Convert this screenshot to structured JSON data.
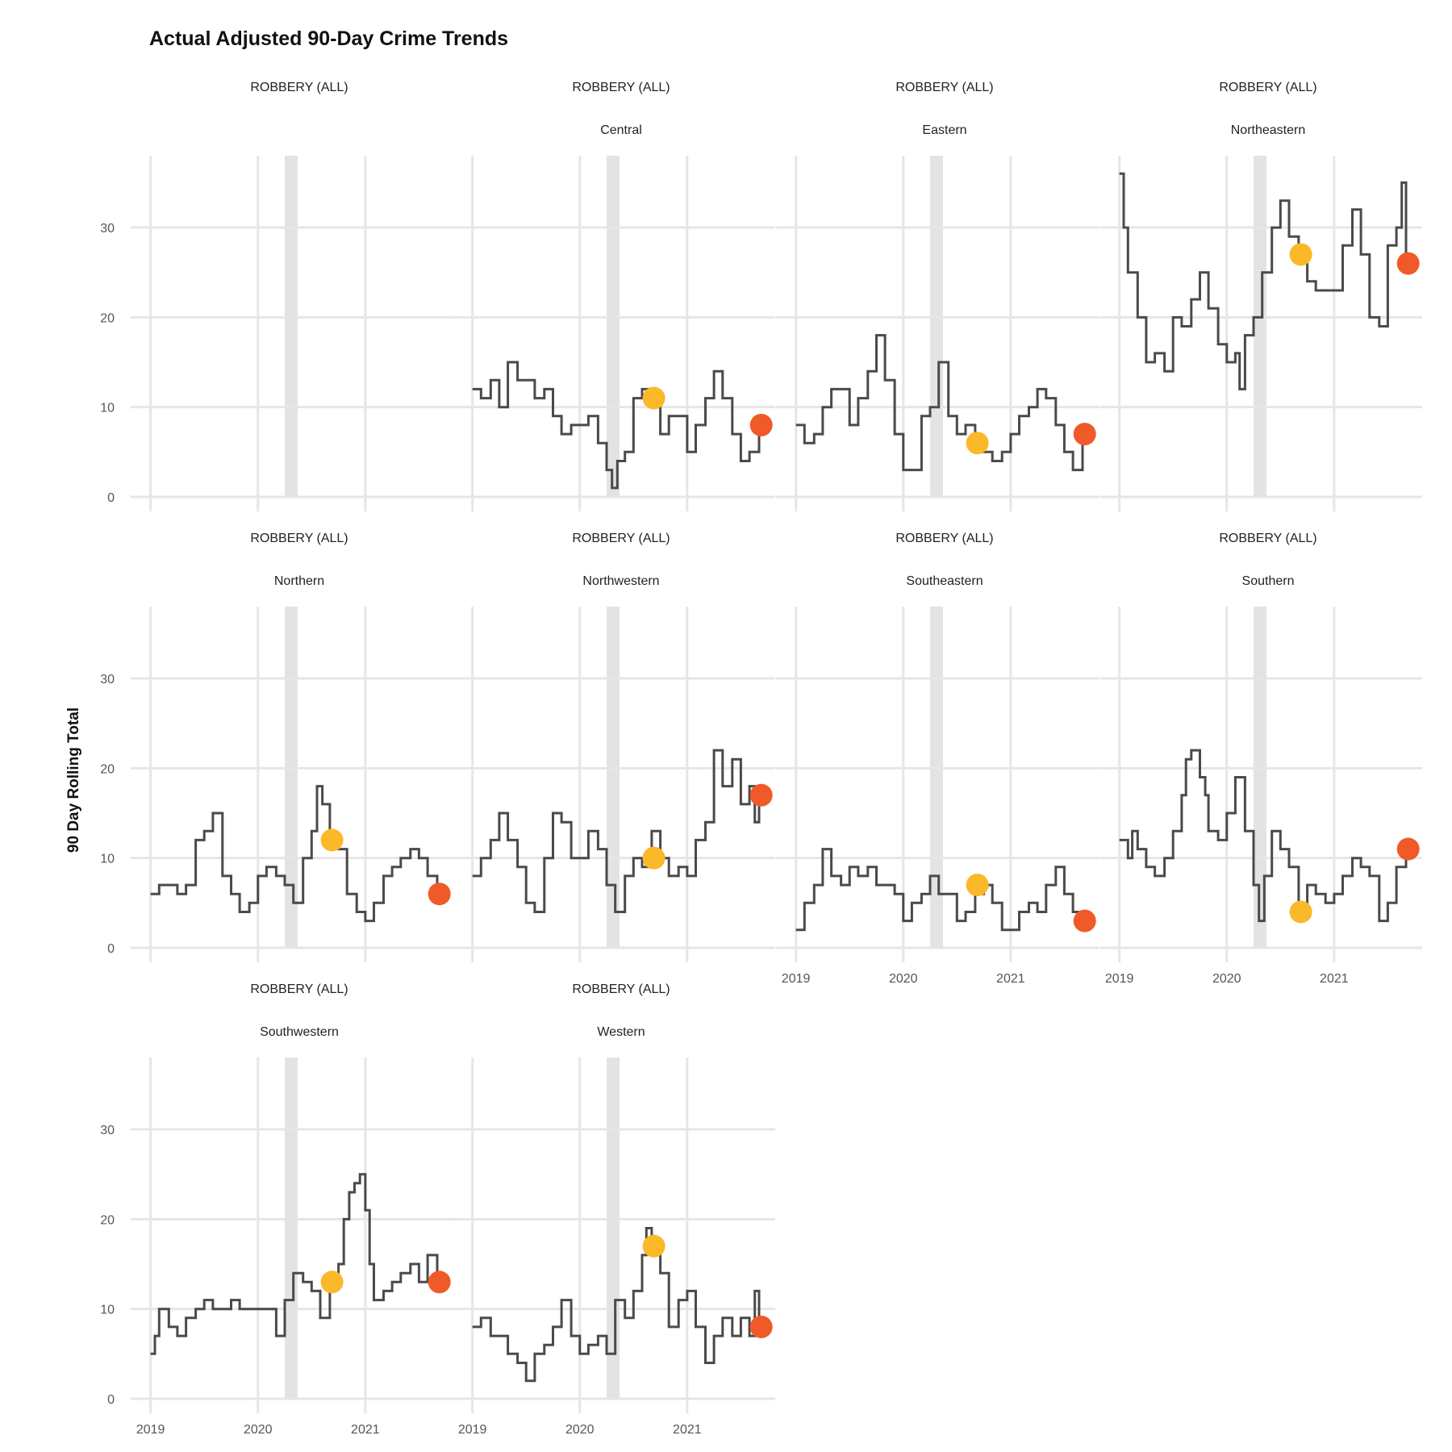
{
  "chart_data": {
    "type": "line",
    "title": "Actual Adjusted 90-Day Crime Trends",
    "xlabel": "",
    "ylabel": "90 Day Rolling Total",
    "xlim": [
      2018.95,
      2021.82
    ],
    "ylim": [
      0,
      38
    ],
    "x_ticks": [
      2019,
      2020,
      2021
    ],
    "x_tick_labels": [
      "2019",
      "2020",
      "2021"
    ],
    "y_ticks": [
      0,
      10,
      20,
      30
    ],
    "y_tick_labels": [
      "0",
      "10",
      "20",
      "30"
    ],
    "grid": true,
    "shaded_band": [
      2020.25,
      2020.37
    ],
    "colors": {
      "line": "#4a4a4a",
      "marker_earlier": "#FBB829",
      "marker_latest": "#F05A28",
      "grid": "#e6e6e6",
      "band": "#e3e3e3"
    },
    "panels": [
      {
        "strip": [
          "ROBBERY (ALL)",
          ""
        ],
        "x": [],
        "y": [],
        "markers": []
      },
      {
        "strip": [
          "ROBBERY (ALL)",
          "Central"
        ],
        "x": [
          2019.0,
          2019.08,
          2019.17,
          2019.25,
          2019.33,
          2019.42,
          2019.5,
          2019.58,
          2019.67,
          2019.75,
          2019.83,
          2019.92,
          2020.0,
          2020.08,
          2020.17,
          2020.25,
          2020.3,
          2020.35,
          2020.42,
          2020.5,
          2020.58,
          2020.67,
          2020.75,
          2020.83,
          2020.92,
          2021.0,
          2021.08,
          2021.17,
          2021.25,
          2021.33,
          2021.42,
          2021.5,
          2021.58,
          2021.67
        ],
        "y": [
          12,
          11,
          13,
          10,
          15,
          13,
          13,
          11,
          12,
          9,
          7,
          8,
          8,
          9,
          6,
          3,
          1,
          4,
          5,
          11,
          12,
          11,
          7,
          9,
          9,
          5,
          8,
          11,
          14,
          11,
          7,
          4,
          5,
          8
        ],
        "markers": [
          {
            "x": 2020.69,
            "y": 11,
            "kind": "earlier"
          },
          {
            "x": 2021.69,
            "y": 8,
            "kind": "latest"
          }
        ]
      },
      {
        "strip": [
          "ROBBERY (ALL)",
          "Eastern"
        ],
        "x": [
          2019.0,
          2019.08,
          2019.17,
          2019.25,
          2019.33,
          2019.42,
          2019.5,
          2019.58,
          2019.67,
          2019.75,
          2019.83,
          2019.92,
          2020.0,
          2020.08,
          2020.17,
          2020.25,
          2020.33,
          2020.42,
          2020.5,
          2020.58,
          2020.67,
          2020.75,
          2020.83,
          2020.92,
          2021.0,
          2021.08,
          2021.17,
          2021.25,
          2021.33,
          2021.42,
          2021.5,
          2021.58,
          2021.67
        ],
        "y": [
          8,
          6,
          7,
          10,
          12,
          12,
          8,
          11,
          14,
          18,
          13,
          7,
          3,
          3,
          9,
          10,
          15,
          9,
          7,
          8,
          6,
          5,
          4,
          5,
          7,
          9,
          10,
          12,
          11,
          8,
          5,
          3,
          7
        ],
        "markers": [
          {
            "x": 2020.69,
            "y": 6,
            "kind": "earlier"
          },
          {
            "x": 2021.69,
            "y": 7,
            "kind": "latest"
          }
        ]
      },
      {
        "strip": [
          "ROBBERY (ALL)",
          "Northeastern"
        ],
        "x": [
          2019.0,
          2019.04,
          2019.08,
          2019.17,
          2019.25,
          2019.33,
          2019.42,
          2019.5,
          2019.58,
          2019.67,
          2019.75,
          2019.83,
          2019.92,
          2020.0,
          2020.08,
          2020.12,
          2020.17,
          2020.25,
          2020.33,
          2020.42,
          2020.5,
          2020.58,
          2020.67,
          2020.75,
          2020.83,
          2020.92,
          2021.0,
          2021.08,
          2021.17,
          2021.25,
          2021.33,
          2021.42,
          2021.5,
          2021.58,
          2021.63,
          2021.67
        ],
        "y": [
          36,
          30,
          25,
          20,
          15,
          16,
          14,
          20,
          19,
          22,
          25,
          21,
          17,
          15,
          16,
          12,
          18,
          20,
          25,
          30,
          33,
          29,
          27,
          24,
          23,
          23,
          23,
          28,
          32,
          27,
          20,
          19,
          28,
          30,
          35,
          26
        ],
        "markers": [
          {
            "x": 2020.69,
            "y": 27,
            "kind": "earlier"
          },
          {
            "x": 2021.69,
            "y": 26,
            "kind": "latest"
          }
        ]
      },
      {
        "strip": [
          "ROBBERY (ALL)",
          "Northern"
        ],
        "x": [
          2019.0,
          2019.08,
          2019.17,
          2019.25,
          2019.33,
          2019.42,
          2019.5,
          2019.58,
          2019.67,
          2019.75,
          2019.83,
          2019.92,
          2020.0,
          2020.08,
          2020.17,
          2020.25,
          2020.33,
          2020.42,
          2020.5,
          2020.55,
          2020.6,
          2020.67,
          2020.75,
          2020.83,
          2020.92,
          2021.0,
          2021.08,
          2021.17,
          2021.25,
          2021.33,
          2021.42,
          2021.5,
          2021.58,
          2021.67
        ],
        "y": [
          6,
          7,
          7,
          6,
          7,
          12,
          13,
          15,
          8,
          6,
          4,
          5,
          8,
          9,
          8,
          7,
          5,
          10,
          13,
          18,
          16,
          12,
          11,
          6,
          4,
          3,
          5,
          8,
          9,
          10,
          11,
          10,
          8,
          6
        ],
        "markers": [
          {
            "x": 2020.69,
            "y": 12,
            "kind": "earlier"
          },
          {
            "x": 2021.69,
            "y": 6,
            "kind": "latest"
          }
        ]
      },
      {
        "strip": [
          "ROBBERY (ALL)",
          "Northwestern"
        ],
        "x": [
          2019.0,
          2019.08,
          2019.17,
          2019.25,
          2019.33,
          2019.42,
          2019.5,
          2019.58,
          2019.67,
          2019.75,
          2019.83,
          2019.92,
          2020.0,
          2020.08,
          2020.17,
          2020.25,
          2020.33,
          2020.42,
          2020.5,
          2020.58,
          2020.67,
          2020.75,
          2020.83,
          2020.92,
          2021.0,
          2021.08,
          2021.17,
          2021.25,
          2021.33,
          2021.42,
          2021.5,
          2021.58,
          2021.63,
          2021.67
        ],
        "y": [
          8,
          10,
          12,
          15,
          12,
          9,
          5,
          4,
          10,
          15,
          14,
          10,
          10,
          13,
          11,
          7,
          4,
          8,
          10,
          9,
          13,
          10,
          8,
          9,
          8,
          12,
          14,
          22,
          18,
          21,
          16,
          18,
          14,
          17
        ],
        "markers": [
          {
            "x": 2020.69,
            "y": 10,
            "kind": "earlier"
          },
          {
            "x": 2021.69,
            "y": 17,
            "kind": "latest"
          }
        ]
      },
      {
        "strip": [
          "ROBBERY (ALL)",
          "Southeastern"
        ],
        "x": [
          2019.0,
          2019.08,
          2019.17,
          2019.25,
          2019.33,
          2019.42,
          2019.5,
          2019.58,
          2019.67,
          2019.75,
          2019.83,
          2019.92,
          2020.0,
          2020.08,
          2020.17,
          2020.25,
          2020.33,
          2020.42,
          2020.5,
          2020.58,
          2020.67,
          2020.75,
          2020.83,
          2020.92,
          2021.0,
          2021.08,
          2021.17,
          2021.25,
          2021.33,
          2021.42,
          2021.5,
          2021.58,
          2021.67
        ],
        "y": [
          2,
          5,
          7,
          11,
          8,
          7,
          9,
          8,
          9,
          7,
          7,
          6,
          3,
          5,
          6,
          8,
          6,
          6,
          3,
          4,
          6,
          7,
          5,
          2,
          2,
          4,
          5,
          4,
          7,
          9,
          6,
          4,
          3
        ],
        "markers": [
          {
            "x": 2020.69,
            "y": 7,
            "kind": "earlier"
          },
          {
            "x": 2021.69,
            "y": 3,
            "kind": "latest"
          }
        ]
      },
      {
        "strip": [
          "ROBBERY (ALL)",
          "Southern"
        ],
        "x": [
          2019.0,
          2019.08,
          2019.12,
          2019.17,
          2019.25,
          2019.33,
          2019.42,
          2019.5,
          2019.58,
          2019.62,
          2019.67,
          2019.75,
          2019.8,
          2019.83,
          2019.92,
          2020.0,
          2020.08,
          2020.17,
          2020.25,
          2020.3,
          2020.35,
          2020.42,
          2020.5,
          2020.58,
          2020.67,
          2020.75,
          2020.83,
          2020.92,
          2021.0,
          2021.08,
          2021.17,
          2021.25,
          2021.33,
          2021.42,
          2021.5,
          2021.58,
          2021.67
        ],
        "y": [
          12,
          10,
          13,
          11,
          9,
          8,
          10,
          13,
          17,
          21,
          22,
          19,
          17,
          13,
          12,
          15,
          19,
          13,
          7,
          3,
          8,
          13,
          11,
          9,
          4,
          7,
          6,
          5,
          6,
          8,
          10,
          9,
          8,
          3,
          5,
          9,
          11
        ],
        "markers": [
          {
            "x": 2020.69,
            "y": 4,
            "kind": "earlier"
          },
          {
            "x": 2021.69,
            "y": 11,
            "kind": "latest"
          }
        ]
      },
      {
        "strip": [
          "ROBBERY (ALL)",
          "Southwestern"
        ],
        "x": [
          2019.0,
          2019.04,
          2019.08,
          2019.17,
          2019.25,
          2019.33,
          2019.42,
          2019.5,
          2019.58,
          2019.67,
          2019.75,
          2019.83,
          2019.92,
          2020.0,
          2020.08,
          2020.17,
          2020.25,
          2020.33,
          2020.42,
          2020.5,
          2020.58,
          2020.67,
          2020.75,
          2020.8,
          2020.85,
          2020.9,
          2020.95,
          2021.0,
          2021.04,
          2021.08,
          2021.17,
          2021.25,
          2021.33,
          2021.42,
          2021.5,
          2021.58,
          2021.67
        ],
        "y": [
          5,
          7,
          10,
          8,
          7,
          9,
          10,
          11,
          10,
          10,
          11,
          10,
          10,
          10,
          10,
          7,
          11,
          14,
          13,
          12,
          9,
          13,
          15,
          20,
          23,
          24,
          25,
          21,
          15,
          11,
          12,
          13,
          14,
          15,
          13,
          16,
          13
        ],
        "markers": [
          {
            "x": 2020.69,
            "y": 13,
            "kind": "earlier"
          },
          {
            "x": 2021.69,
            "y": 13,
            "kind": "latest"
          }
        ]
      },
      {
        "strip": [
          "ROBBERY (ALL)",
          "Western"
        ],
        "x": [
          2019.0,
          2019.08,
          2019.17,
          2019.25,
          2019.33,
          2019.42,
          2019.5,
          2019.58,
          2019.67,
          2019.75,
          2019.83,
          2019.92,
          2020.0,
          2020.08,
          2020.17,
          2020.25,
          2020.33,
          2020.42,
          2020.5,
          2020.58,
          2020.62,
          2020.67,
          2020.75,
          2020.83,
          2020.92,
          2021.0,
          2021.08,
          2021.17,
          2021.25,
          2021.33,
          2021.42,
          2021.5,
          2021.58,
          2021.63,
          2021.67
        ],
        "y": [
          8,
          9,
          7,
          7,
          5,
          4,
          2,
          5,
          6,
          8,
          11,
          7,
          5,
          6,
          7,
          5,
          11,
          9,
          12,
          16,
          19,
          17,
          14,
          8,
          11,
          12,
          8,
          4,
          7,
          9,
          7,
          9,
          7,
          12,
          8
        ],
        "markers": [
          {
            "x": 2020.69,
            "y": 17,
            "kind": "earlier"
          },
          {
            "x": 2021.69,
            "y": 8,
            "kind": "latest"
          }
        ]
      }
    ]
  }
}
